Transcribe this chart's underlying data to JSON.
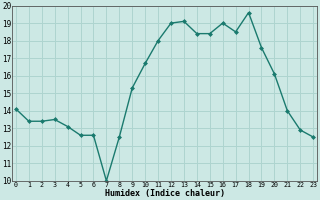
{
  "x": [
    0,
    1,
    2,
    3,
    4,
    5,
    6,
    7,
    8,
    9,
    10,
    11,
    12,
    13,
    14,
    15,
    16,
    17,
    18,
    19,
    20,
    21,
    22,
    23
  ],
  "y": [
    14.1,
    13.4,
    13.4,
    13.5,
    13.1,
    12.6,
    12.6,
    10.0,
    12.5,
    15.3,
    16.7,
    18.0,
    19.0,
    19.1,
    18.4,
    18.4,
    19.0,
    18.5,
    19.6,
    17.6,
    16.1,
    14.0,
    12.9,
    12.5
  ],
  "xlabel": "Humidex (Indice chaleur)",
  "ylim": [
    10,
    20
  ],
  "xlim_min": -0.3,
  "xlim_max": 23.3,
  "yticks": [
    10,
    11,
    12,
    13,
    14,
    15,
    16,
    17,
    18,
    19,
    20
  ],
  "xticks": [
    0,
    1,
    2,
    3,
    4,
    5,
    6,
    7,
    8,
    9,
    10,
    11,
    12,
    13,
    14,
    15,
    16,
    17,
    18,
    19,
    20,
    21,
    22,
    23
  ],
  "line_color": "#1a7a6e",
  "marker_color": "#1a7a6e",
  "bg_color": "#cce8e4",
  "grid_color": "#aed4cf"
}
